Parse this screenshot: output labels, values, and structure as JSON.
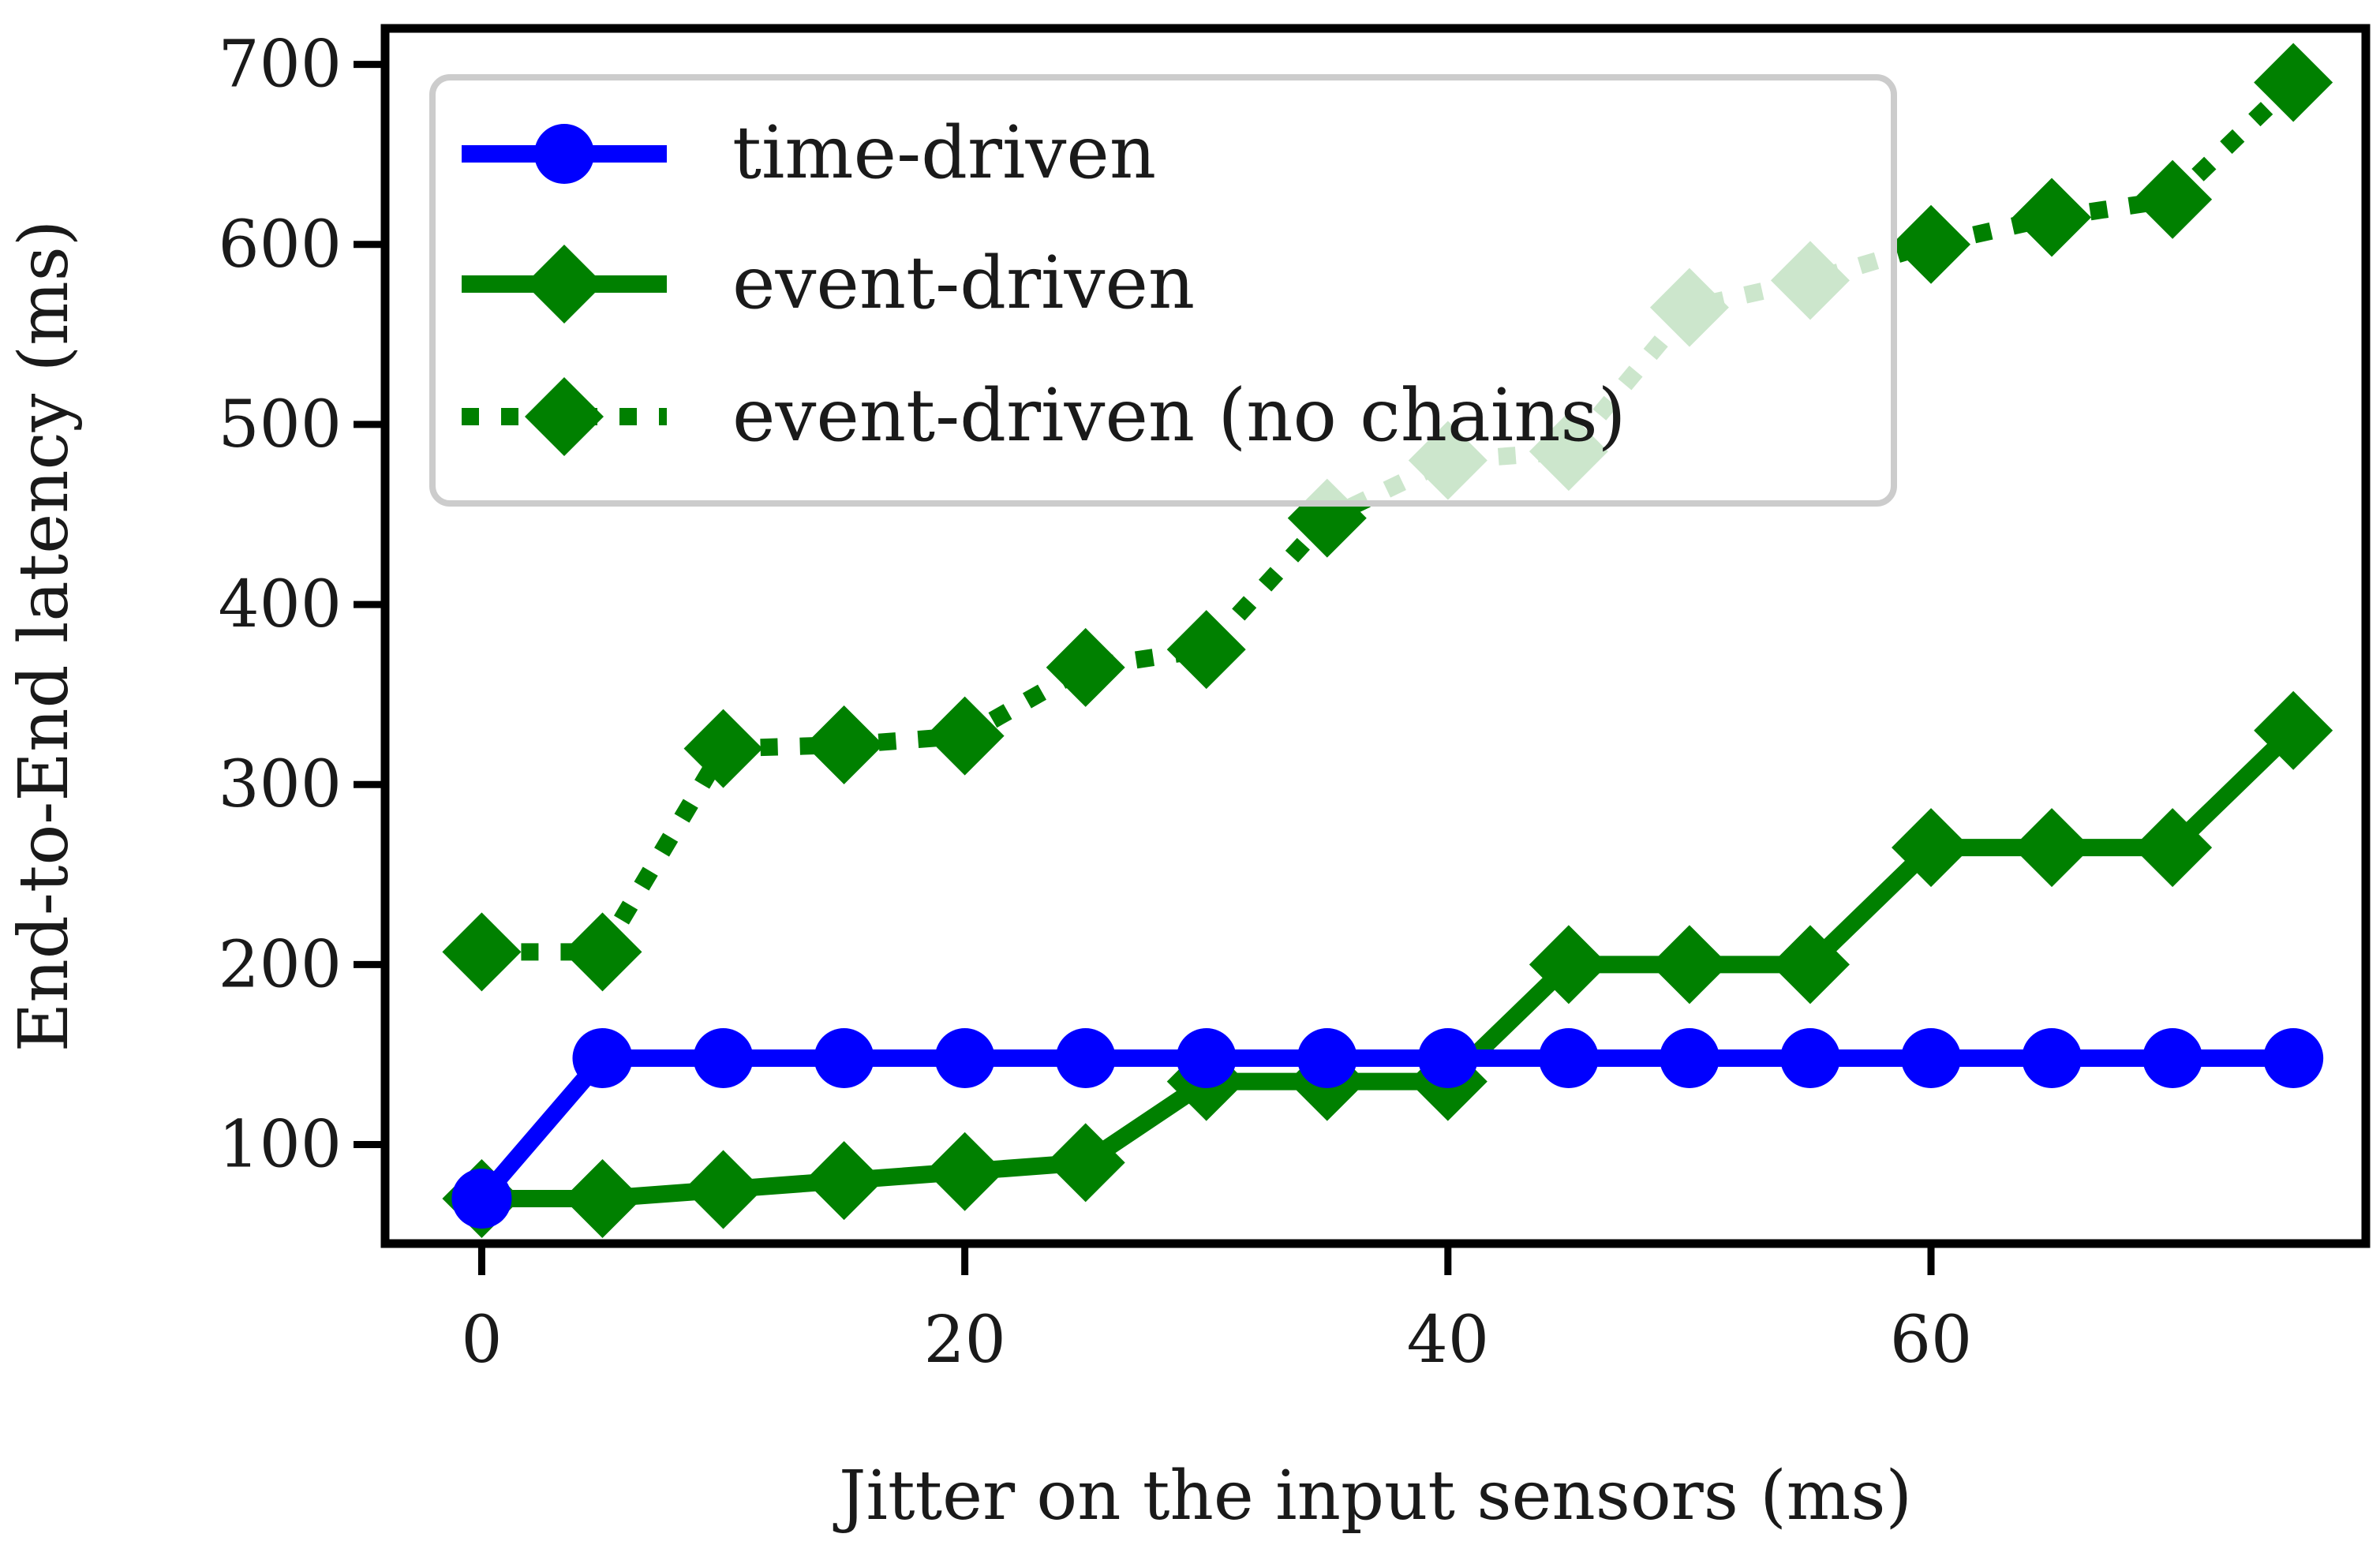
{
  "chart_data": {
    "type": "line",
    "title": "",
    "xlabel": "Jitter on the input sensors (ms)",
    "ylabel": "End-to-End latency (ms)",
    "xlim": [
      -4,
      78
    ],
    "ylim": [
      45,
      720
    ],
    "xticks": [
      0,
      20,
      40,
      60
    ],
    "yticks": [
      100,
      200,
      300,
      400,
      500,
      600,
      700
    ],
    "grid": false,
    "legend": "top-left",
    "x": [
      0,
      5,
      10,
      15,
      20,
      25,
      30,
      35,
      40,
      45,
      50,
      55,
      60,
      65,
      70,
      75
    ],
    "series": [
      {
        "name": "time-driven",
        "color": "#0000ff",
        "marker": "circle",
        "linestyle": "solid",
        "values": [
          70,
          148,
          148,
          148,
          148,
          148,
          148,
          148,
          148,
          148,
          148,
          148,
          148,
          148,
          148,
          148
        ]
      },
      {
        "name": "event-driven",
        "color": "#008000",
        "marker": "diamond",
        "linestyle": "solid",
        "values": [
          70,
          70,
          75,
          80,
          85,
          90,
          135,
          135,
          135,
          200,
          200,
          200,
          265,
          265,
          265,
          330
        ]
      },
      {
        "name": "event-driven (no chains)",
        "color": "#008000",
        "marker": "diamond",
        "linestyle": "dotted",
        "values": [
          207,
          207,
          320,
          322,
          327,
          365,
          375,
          448,
          480,
          485,
          565,
          580,
          600,
          615,
          625,
          690
        ]
      }
    ]
  }
}
